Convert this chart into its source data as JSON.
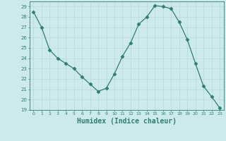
{
  "x": [
    0,
    1,
    2,
    3,
    4,
    5,
    6,
    7,
    8,
    9,
    10,
    11,
    12,
    13,
    14,
    15,
    16,
    17,
    18,
    19,
    20,
    21,
    22,
    23
  ],
  "y": [
    28.5,
    27.0,
    24.8,
    24.0,
    23.5,
    23.0,
    22.2,
    21.5,
    20.8,
    21.1,
    22.5,
    24.2,
    25.5,
    27.3,
    28.0,
    29.1,
    29.0,
    28.8,
    27.5,
    25.8,
    23.5,
    21.3,
    20.3,
    19.2
  ],
  "line_color": "#2e7d6e",
  "marker": "D",
  "marker_size": 2.5,
  "bg_color": "#cdeaea",
  "grid_color_major": "#b8d8d8",
  "grid_color_minor": "#c8e4e4",
  "tick_color": "#2e7d6e",
  "xlabel": "Humidex (Indice chaleur)",
  "xlabel_fontsize": 7,
  "ylim": [
    19,
    29.5
  ],
  "yticks": [
    19,
    20,
    21,
    22,
    23,
    24,
    25,
    26,
    27,
    28,
    29
  ],
  "xticks": [
    0,
    1,
    2,
    3,
    4,
    5,
    6,
    7,
    8,
    9,
    10,
    11,
    12,
    13,
    14,
    15,
    16,
    17,
    18,
    19,
    20,
    21,
    22,
    23
  ],
  "xtick_labels": [
    "0",
    "1",
    "2",
    "3",
    "4",
    "5",
    "6",
    "7",
    "8",
    "9",
    "10",
    "11",
    "12",
    "13",
    "14",
    "15",
    "16",
    "17",
    "18",
    "19",
    "20",
    "21",
    "22",
    "23"
  ],
  "xlim": [
    -0.5,
    23.5
  ]
}
